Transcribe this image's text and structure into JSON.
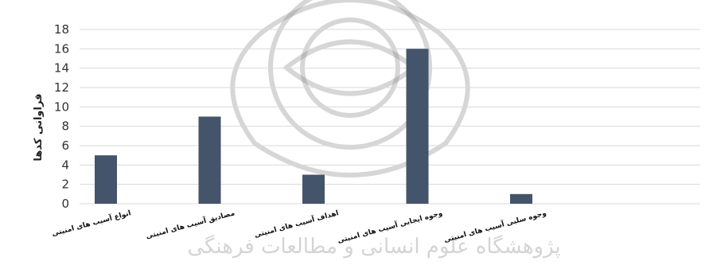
{
  "chart_data": {
    "type": "bar",
    "title": "",
    "xlabel": "",
    "ylabel": "فراوانی کدها",
    "categories": [
      "انواع آسیب های امنیتی",
      "مصادیق آسیب های امنیتی",
      "اهداف آسیب های امنیتی",
      "وجوه ایجابی آسیب های امنیتی",
      "وجوه سلبی آسیب های امنیتی"
    ],
    "values": [
      5,
      9,
      3,
      16,
      1
    ],
    "ylim": [
      0,
      18
    ],
    "yticks": [
      0,
      2,
      4,
      6,
      8,
      10,
      12,
      14,
      16,
      18
    ],
    "grid": true,
    "legend": "none",
    "colors": {
      "bar": "#44546a",
      "grid": "#d9d9d9"
    }
  },
  "watermark": {
    "text": "پژوهشگاه علوم انسانی و مطالعات فرهنگی"
  }
}
